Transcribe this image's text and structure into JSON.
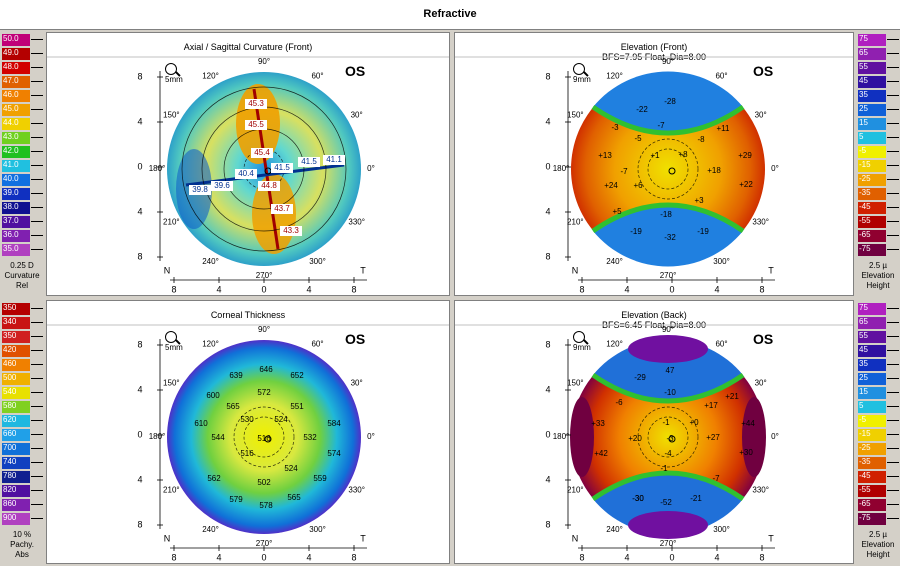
{
  "window": {
    "title": "Refractive"
  },
  "left_legends": [
    {
      "scale": [
        {
          "label": "50.0",
          "color": "#c00078"
        },
        {
          "label": "49.0",
          "color": "#b40000"
        },
        {
          "label": "48.0",
          "color": "#d20000"
        },
        {
          "label": "47.0",
          "color": "#e06000"
        },
        {
          "label": "46.0",
          "color": "#f08000"
        },
        {
          "label": "45.0",
          "color": "#f0a000"
        },
        {
          "label": "44.0",
          "color": "#f0d000"
        },
        {
          "label": "43.0",
          "color": "#70d020"
        },
        {
          "label": "42.0",
          "color": "#20c020"
        },
        {
          "label": "41.0",
          "color": "#20c0e0"
        },
        {
          "label": "40.0",
          "color": "#1070e0"
        },
        {
          "label": "39.0",
          "color": "#1030c0"
        },
        {
          "label": "38.0",
          "color": "#101090"
        },
        {
          "label": "37.0",
          "color": "#5010a0"
        },
        {
          "label": "36.0",
          "color": "#8020b0"
        },
        {
          "label": "35.0",
          "color": "#b040c0"
        }
      ],
      "footer": [
        "0.25 D",
        "Curvature",
        "Rel"
      ]
    },
    {
      "scale": [
        {
          "label": "350",
          "color": "#b40000"
        },
        {
          "label": "340",
          "color": "#c81414"
        },
        {
          "label": "350",
          "color": "#d02020"
        },
        {
          "label": "420",
          "color": "#e05000"
        },
        {
          "label": "460",
          "color": "#f08000"
        },
        {
          "label": "500",
          "color": "#f0b000"
        },
        {
          "label": "540",
          "color": "#e8e000"
        },
        {
          "label": "580",
          "color": "#80d020"
        },
        {
          "label": "620",
          "color": "#20b8e0"
        },
        {
          "label": "660",
          "color": "#20a0e8"
        },
        {
          "label": "700",
          "color": "#1070d8"
        },
        {
          "label": "740",
          "color": "#1040c0"
        },
        {
          "label": "780",
          "color": "#102090"
        },
        {
          "label": "820",
          "color": "#5010a0"
        },
        {
          "label": "860",
          "color": "#8020b0"
        },
        {
          "label": "900",
          "color": "#b040c0"
        }
      ],
      "footer": [
        "10 %",
        "Pachy.",
        "Abs"
      ]
    }
  ],
  "right_legends": [
    {
      "scale": [
        {
          "label": "75",
          "color": "#b020c0"
        },
        {
          "label": "65",
          "color": "#9020b0"
        },
        {
          "label": "55",
          "color": "#6010a0"
        },
        {
          "label": "45",
          "color": "#3010a0"
        },
        {
          "label": "35",
          "color": "#1030c0"
        },
        {
          "label": "25",
          "color": "#1060d8"
        },
        {
          "label": "15",
          "color": "#2090e0"
        },
        {
          "label": "5",
          "color": "#20c0e0"
        },
        {
          "label": "-5",
          "color": "#f0f000"
        },
        {
          "label": "-15",
          "color": "#f0d000"
        },
        {
          "label": "-25",
          "color": "#f0a000"
        },
        {
          "label": "-35",
          "color": "#e06000"
        },
        {
          "label": "-45",
          "color": "#d02000"
        },
        {
          "label": "-55",
          "color": "#b00000"
        },
        {
          "label": "-65",
          "color": "#900030"
        },
        {
          "label": "-75",
          "color": "#700040"
        }
      ],
      "footer": [
        "2.5 µ",
        "Elevation",
        "Height"
      ]
    },
    {
      "scale": [
        {
          "label": "75",
          "color": "#b020c0"
        },
        {
          "label": "65",
          "color": "#9020b0"
        },
        {
          "label": "55",
          "color": "#6010a0"
        },
        {
          "label": "45",
          "color": "#3010a0"
        },
        {
          "label": "35",
          "color": "#1030c0"
        },
        {
          "label": "25",
          "color": "#1060d8"
        },
        {
          "label": "15",
          "color": "#2090e0"
        },
        {
          "label": "5",
          "color": "#20c0e0"
        },
        {
          "label": "-5",
          "color": "#f0f000"
        },
        {
          "label": "-15",
          "color": "#f0d000"
        },
        {
          "label": "-25",
          "color": "#f0a000"
        },
        {
          "label": "-35",
          "color": "#e06000"
        },
        {
          "label": "-45",
          "color": "#d02000"
        },
        {
          "label": "-55",
          "color": "#b00000"
        },
        {
          "label": "-65",
          "color": "#900030"
        },
        {
          "label": "-75",
          "color": "#700040"
        }
      ],
      "footer": [
        "2.5 µ",
        "Elevation",
        "Height"
      ]
    }
  ],
  "panels": {
    "axial": {
      "title": "Axial / Sagittal Curvature (Front)",
      "subtitle": "",
      "eye": "OS",
      "zoom": "5mm",
      "axis_x_ticks": [
        "8",
        "4",
        "0",
        "4",
        "8"
      ],
      "axis_y_ticks": [
        "8",
        "4",
        "0",
        "4",
        "8"
      ],
      "corner_left": "N",
      "corner_right": "T",
      "deg": [
        "90°",
        "60°",
        "30°",
        "0°",
        "330°",
        "300°",
        "270°",
        "240°",
        "210°",
        "180°",
        "150°",
        "120°"
      ],
      "values": [
        "45.3",
        "45.5",
        "45.4",
        "41.5",
        "41.5",
        "41.1",
        "40.4",
        "39.8",
        "39.6",
        "44.8",
        "43.7",
        "43.3"
      ]
    },
    "elev_front": {
      "title": "Elevation (Front)",
      "subtitle": "BFS=7.95 Float, Dia=8.00",
      "eye": "OS",
      "zoom": "9mm",
      "axis_x_ticks": [
        "8",
        "4",
        "0",
        "4",
        "8"
      ],
      "axis_y_ticks": [
        "8",
        "4",
        "0",
        "4",
        "8"
      ],
      "corner_left": "N",
      "corner_right": "T",
      "deg": [
        "90°",
        "60°",
        "30°",
        "0°",
        "330°",
        "300°",
        "270°",
        "240°",
        "210°",
        "180°",
        "150°",
        "120°"
      ],
      "values": [
        "-28",
        "-22",
        "-7",
        "-3",
        "-5",
        "+11",
        "-8",
        "+13",
        "+1",
        "+8",
        "+29",
        "-7",
        "+18",
        "+24",
        "+6",
        "+22",
        "+3",
        "+5",
        "-18",
        "-19",
        "-32",
        "-19"
      ]
    },
    "pachy": {
      "title": "Corneal Thickness",
      "subtitle": "",
      "eye": "OS",
      "zoom": "5mm",
      "axis_x_ticks": [
        "8",
        "4",
        "0",
        "4",
        "8"
      ],
      "axis_y_ticks": [
        "8",
        "4",
        "0",
        "4",
        "8"
      ],
      "corner_left": "N",
      "corner_right": "T",
      "deg": [
        "90°",
        "60°",
        "30°",
        "0°",
        "330°",
        "300°",
        "270°",
        "240°",
        "210°",
        "180°",
        "150°",
        "120°"
      ],
      "values": [
        "646",
        "639",
        "652",
        "572",
        "600",
        "565",
        "551",
        "610",
        "530",
        "524",
        "584",
        "544",
        "516",
        "532",
        "516",
        "574",
        "562",
        "524",
        "502",
        "559",
        "579",
        "565",
        "578"
      ]
    },
    "elev_back": {
      "title": "Elevation (Back)",
      "subtitle": "BFS=6.45 Float, Dia=8.00",
      "eye": "OS",
      "zoom": "9mm",
      "axis_x_ticks": [
        "8",
        "4",
        "0",
        "4",
        "8"
      ],
      "axis_y_ticks": [
        "8",
        "4",
        "0",
        "4",
        "8"
      ],
      "corner_left": "N",
      "corner_right": "T",
      "deg": [
        "90°",
        "60°",
        "30°",
        "0°",
        "330°",
        "300°",
        "270°",
        "240°",
        "210°",
        "180°",
        "150°",
        "120°"
      ],
      "values": [
        "47",
        "-29",
        "-10",
        "-6",
        "+17",
        "+21",
        "+33",
        "-1",
        "+0",
        "+44",
        "+20",
        "-3",
        "+27",
        "+42",
        "-4",
        "+30",
        "-1",
        "-7",
        "-30",
        "-21",
        "-52",
        "-30"
      ]
    }
  }
}
